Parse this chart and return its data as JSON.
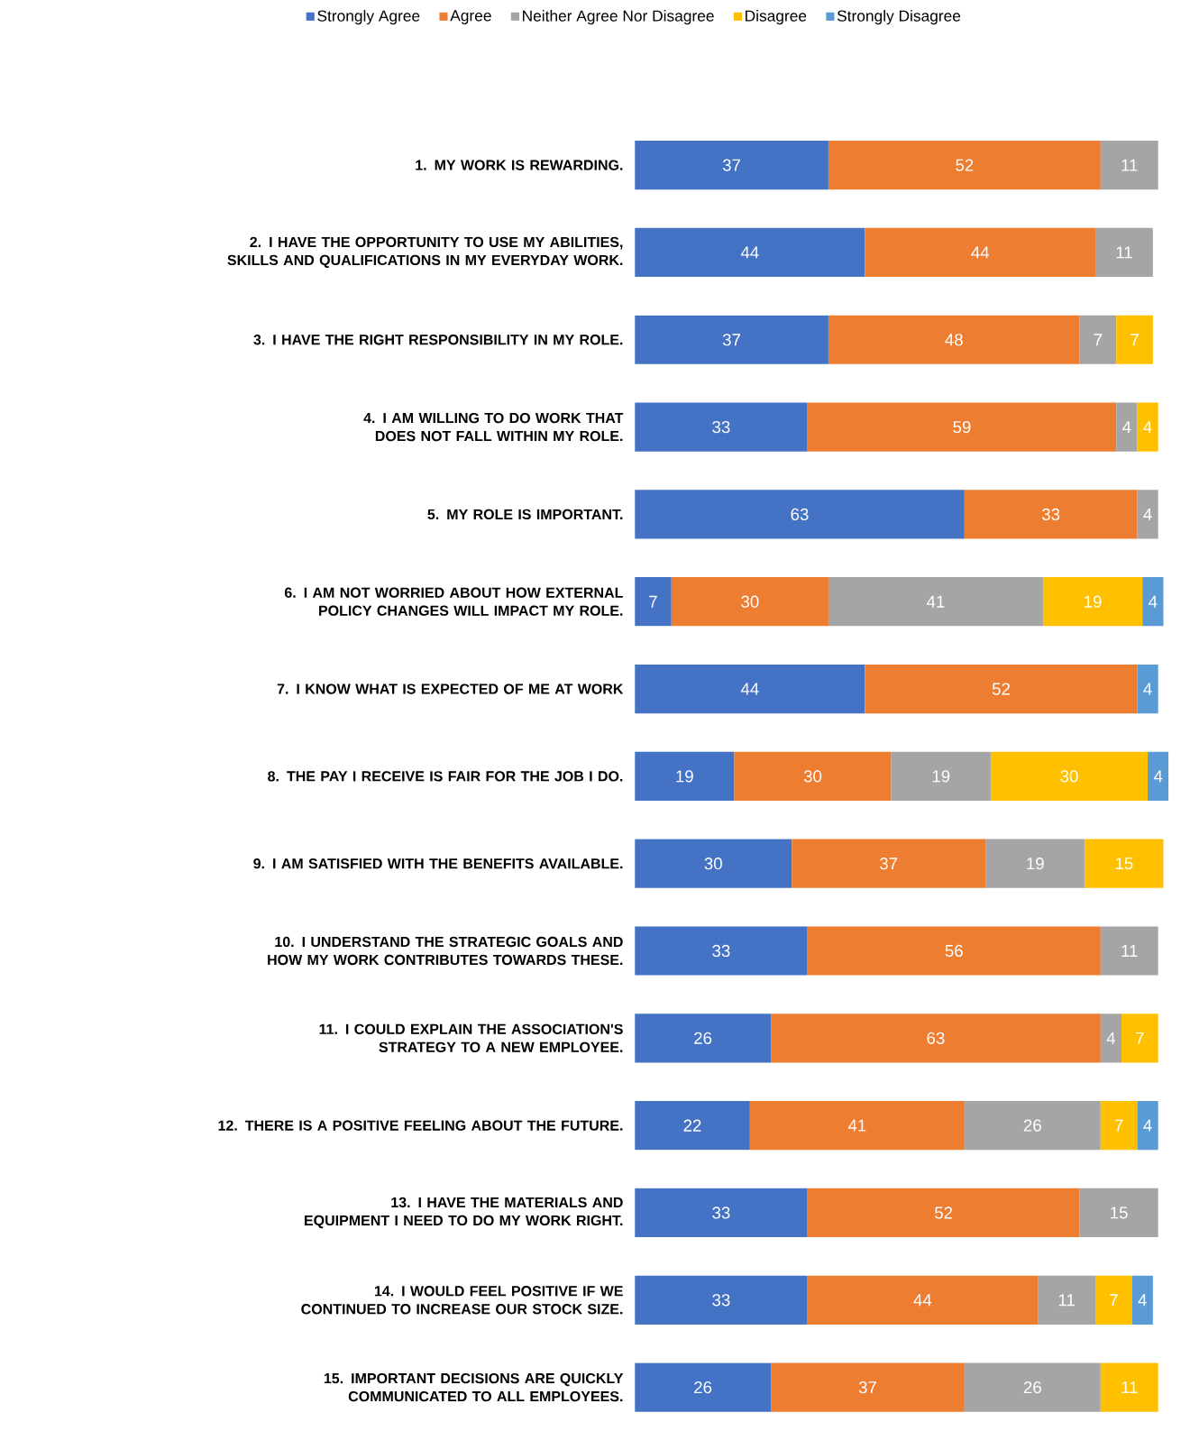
{
  "chart_data": {
    "type": "bar",
    "orientation": "horizontal",
    "stacked": true,
    "data_labels": true,
    "legend": "top",
    "tick_labels": "y",
    "xlim": [
      0,
      102
    ],
    "categories": [
      "1. MY WORK IS REWARDING.",
      "2. I HAVE THE OPPORTUNITY TO USE MY ABILITIES, SKILLS AND QUALIFICATIONS IN MY EVERYDAY WORK.",
      "3. I HAVE THE RIGHT RESPONSIBILITY IN MY ROLE.",
      "4. I AM WILLING TO DO WORK THAT DOES NOT FALL WITHIN MY ROLE.",
      "5. MY ROLE IS IMPORTANT.",
      "6. I AM NOT WORRIED ABOUT HOW EXTERNAL POLICY CHANGES WILL IMPACT MY ROLE.",
      "7. I KNOW WHAT IS EXPECTED OF ME AT WORK",
      "8. THE PAY I RECEIVE IS FAIR FOR THE JOB I DO.",
      "9. I AM SATISFIED WITH THE BENEFITS AVAILABLE.",
      "10. I UNDERSTAND THE STRATEGIC GOALS AND HOW MY WORK CONTRIBUTES TOWARDS THESE.",
      "11. I COULD EXPLAIN THE ASSOCIATION'S STRATEGY TO A NEW EMPLOYEE.",
      "12. THERE IS A POSITIVE FEELING ABOUT THE FUTURE.",
      "13. I HAVE THE MATERIALS AND EQUIPMENT I NEED TO DO MY WORK RIGHT.",
      "14. I WOULD FEEL POSITIVE IF WE CONTINUED TO INCREASE OUR STOCK SIZE.",
      "15. IMPORTANT DECISIONS ARE QUICKLY COMMUNICATED TO ALL EMPLOYEES."
    ],
    "series": [
      {
        "name": "Strongly Agree",
        "color": "#4472c4",
        "values": [
          37,
          44,
          37,
          33,
          63,
          7,
          44,
          19,
          30,
          33,
          26,
          22,
          33,
          33,
          26
        ]
      },
      {
        "name": "Agree",
        "color": "#ed7d31",
        "values": [
          52,
          44,
          48,
          59,
          33,
          30,
          52,
          30,
          37,
          56,
          63,
          41,
          52,
          44,
          37
        ]
      },
      {
        "name": "Neither Agree Nor Disagree",
        "color": "#a5a5a5",
        "values": [
          11,
          11,
          7,
          4,
          4,
          41,
          null,
          19,
          19,
          11,
          4,
          26,
          15,
          11,
          26
        ]
      },
      {
        "name": "Disagree",
        "color": "#ffc000",
        "values": [
          null,
          null,
          7,
          4,
          null,
          19,
          null,
          30,
          15,
          null,
          7,
          7,
          null,
          7,
          11
        ]
      },
      {
        "name": "Strongly Disagree",
        "color": "#5b9bd5",
        "values": [
          null,
          null,
          null,
          null,
          null,
          4,
          4,
          4,
          null,
          null,
          null,
          4,
          null,
          4,
          null
        ]
      }
    ]
  }
}
